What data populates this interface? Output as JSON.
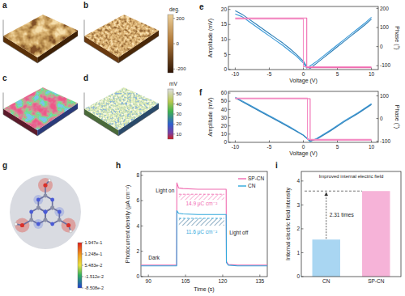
{
  "chart_data": [
    {
      "type": "surface",
      "title": "a"
    },
    {
      "type": "surface",
      "title": "b",
      "colorbar": {
        "label": "deg.",
        "lim": [
          -230,
          230
        ],
        "ticks": [
          200,
          0,
          -200
        ]
      }
    },
    {
      "type": "surface",
      "title": "c"
    },
    {
      "type": "surface",
      "title": "d",
      "colorbar": {
        "label": "mV",
        "lim": [
          5,
          55
        ],
        "ticks": [
          50,
          40,
          30,
          20,
          10
        ]
      }
    },
    {
      "type": "line",
      "title": "e",
      "xlabel": "Voltage (V)",
      "ylabel": "Amplitude (mV)",
      "y2label": "Phase (°)",
      "xlim": [
        -11,
        11
      ],
      "xticks": [
        -10,
        -5,
        0,
        5,
        10
      ],
      "ylim": [
        0,
        21
      ],
      "yticks": [
        0,
        5,
        10,
        15,
        20
      ],
      "y2lim": [
        -120,
        210
      ],
      "y2ticks": [
        -100,
        0,
        100,
        200
      ],
      "series": [
        {
          "color": "#3a9ad9",
          "x": [
            -10,
            -9,
            -8,
            -7,
            -6,
            -5,
            -4,
            -3,
            -2,
            -1,
            0,
            0.5,
            1,
            2,
            3,
            4,
            5,
            6,
            7,
            8,
            9,
            10
          ],
          "values": [
            18.5,
            17.6,
            16.0,
            14.4,
            12.8,
            11.2,
            9.6,
            8.0,
            6.2,
            4.4,
            2.2,
            0.5,
            1.2,
            2.8,
            4.6,
            6.4,
            8.2,
            10.0,
            11.8,
            13.6,
            15.4,
            17.4
          ]
        },
        {
          "color": "#2c7fb8",
          "x": [
            -10,
            -9,
            -8,
            -7,
            -6,
            -5,
            -4,
            -3,
            -2,
            -1,
            0,
            0.5,
            1,
            2,
            3,
            4,
            5,
            6,
            7,
            8,
            9,
            10
          ],
          "values": [
            19.6,
            18.4,
            16.8,
            15.2,
            13.6,
            12.0,
            10.4,
            8.8,
            7.0,
            5.0,
            2.8,
            1.0,
            0.4,
            2.2,
            4.0,
            5.8,
            7.6,
            9.4,
            11.2,
            13.0,
            14.8,
            16.8
          ]
        },
        {
          "color": "#f06bb0",
          "axis": "y2",
          "x": [
            -10,
            0.5,
            0.5,
            10
          ],
          "values": [
            150,
            150,
            -110,
            -110
          ]
        },
        {
          "color": "#f48cc4",
          "axis": "y2",
          "x": [
            10,
            0,
            0,
            -10
          ],
          "values": [
            -105,
            -105,
            145,
            145
          ]
        }
      ]
    },
    {
      "type": "line",
      "title": "f",
      "xlabel": "Voltage (V)",
      "ylabel": "Amplitude (mV)",
      "y2label": "Phase (°)",
      "xlim": [
        -11,
        11
      ],
      "xticks": [
        -10,
        -5,
        0,
        5,
        10
      ],
      "ylim": [
        0,
        62
      ],
      "yticks": [
        0,
        10,
        20,
        30,
        40,
        50,
        60
      ],
      "y2lim": [
        -105,
        120
      ],
      "y2ticks": [
        -100,
        0,
        100
      ],
      "series": [
        {
          "color": "#3a9ad9",
          "x": [
            -10,
            -8,
            -6,
            -4,
            -2,
            0,
            1,
            2,
            4,
            6,
            8,
            10
          ],
          "values": [
            55,
            46,
            37,
            28,
            19,
            9,
            1,
            5,
            15,
            26,
            36,
            47
          ]
        },
        {
          "color": "#2c7fb8",
          "x": [
            -10,
            -8,
            -6,
            -4,
            -2,
            0,
            1,
            2,
            4,
            6,
            8,
            10
          ],
          "values": [
            54,
            45,
            36,
            27,
            18,
            8.5,
            2,
            4,
            14,
            25,
            35,
            46
          ]
        },
        {
          "color": "#f06bb0",
          "axis": "y2",
          "x": [
            -10,
            1,
            1,
            10
          ],
          "values": [
            88,
            88,
            -95,
            -95
          ]
        },
        {
          "color": "#f48cc4",
          "axis": "y2",
          "x": [
            10,
            0.6,
            0.6,
            -10
          ],
          "values": [
            -92,
            -92,
            90,
            90
          ]
        }
      ]
    },
    {
      "type": "image",
      "title": "g",
      "colorbar": {
        "lim": [
          -0.08508,
          0.1947
        ],
        "ticks": [
          {
            "value": 0.1947,
            "label": "1.947e-1"
          },
          {
            "value": 0.1248,
            "label": "1.248e-1"
          },
          {
            "value": 0.05483,
            "label": "5.483e-2"
          },
          {
            "value": -0.01512,
            "label": "-1.512e-2"
          },
          {
            "value": -0.08508,
            "label": "-8.508e-2"
          }
        ]
      }
    },
    {
      "type": "line",
      "title": "h",
      "xlabel": "Time (s)",
      "ylabel": "Photocurrent density (μA cm⁻²)",
      "xlim": [
        87,
        138
      ],
      "xticks": [
        90,
        105,
        120,
        135
      ],
      "ylim": [
        0,
        8.3
      ],
      "yticks": [
        0,
        2,
        4,
        6,
        8
      ],
      "legend": "upper right",
      "x": [
        87,
        101.4,
        101.5,
        102.2,
        104,
        110,
        115,
        121.4,
        121.5,
        122.3,
        126,
        132,
        138
      ],
      "series": [
        {
          "name": "SP-CN",
          "color": "#f06bb0",
          "values": [
            0.9,
            0.9,
            7.4,
            7.0,
            6.95,
            6.9,
            6.9,
            6.9,
            1.2,
            0.95,
            0.9,
            0.9,
            0.9
          ]
        },
        {
          "name": "CN",
          "color": "#2fa8dc",
          "values": [
            0.85,
            0.85,
            5.2,
            5.0,
            4.95,
            4.9,
            4.9,
            4.9,
            1.1,
            0.9,
            0.85,
            0.85,
            0.85
          ]
        }
      ],
      "reference_lines": [
        6.5,
        4.6
      ],
      "annotations": [
        "Light on",
        "Light off",
        "Dark",
        "14.9 μC cm⁻²",
        "11.6 μC cm⁻²"
      ]
    },
    {
      "type": "bar",
      "title": "i",
      "ylabel": "Internal electric field intensity",
      "categories": [
        "CN",
        "SP-CN"
      ],
      "values": [
        1.55,
        3.58
      ],
      "colors": [
        "#a9d6f2",
        "#f6b3d8"
      ],
      "ylim": [
        0,
        4.4
      ],
      "yticks": [
        0,
        1,
        2,
        3,
        4
      ],
      "annotations": [
        "Improved internal electric field",
        "2.31 times"
      ]
    }
  ]
}
